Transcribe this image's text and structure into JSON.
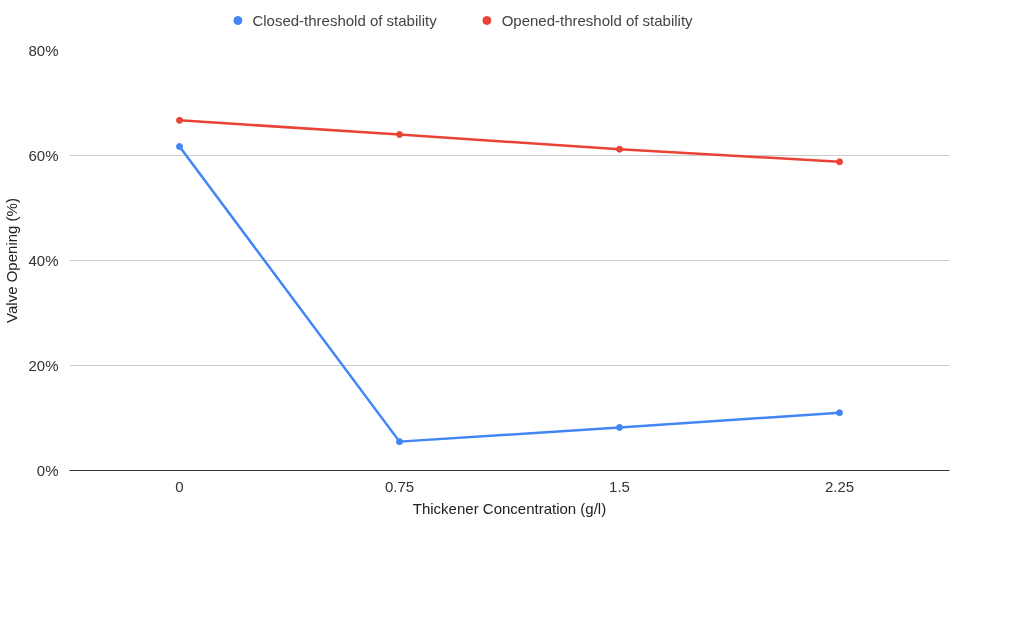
{
  "chart_data": {
    "type": "line",
    "xlabel": "Thickener Concentration (g/l)",
    "ylabel": "Valve Opening (%)",
    "categories": [
      "0",
      "0.75",
      "1.5",
      "2.25"
    ],
    "series": [
      {
        "name": "Closed-threshold of stability",
        "color": "#4285f4",
        "values": [
          61.7,
          5.5,
          8.2,
          11.0
        ]
      },
      {
        "name": "Opened-threshold of stability",
        "color": "#ea4335",
        "values": [
          66.7,
          64.0,
          61.2,
          58.8
        ]
      }
    ],
    "ylim": [
      0,
      80
    ],
    "yticks": [
      {
        "value": 0,
        "label": "0%"
      },
      {
        "value": 20,
        "label": "20%"
      },
      {
        "value": 40,
        "label": "40%"
      },
      {
        "value": 60,
        "label": "60%"
      },
      {
        "value": 80,
        "label": "80%"
      }
    ],
    "grid": "y",
    "legend": "top",
    "marker": "circle",
    "line_style": "solid"
  }
}
